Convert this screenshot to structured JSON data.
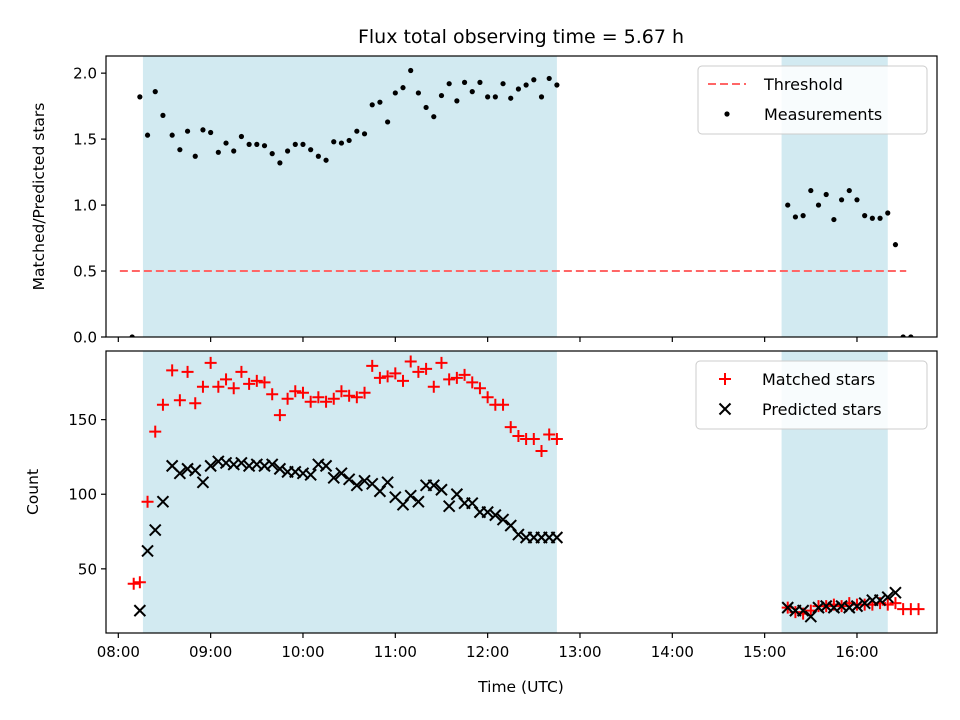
{
  "chart_data": {
    "title": "Flux total observing time = 5.67 h",
    "xlabel": "Time (UTC)",
    "x_ticks": [
      "08:00",
      "09:00",
      "10:00",
      "11:00",
      "12:00",
      "13:00",
      "14:00",
      "15:00",
      "16:00"
    ],
    "xlim": [
      "07:52",
      "16:52"
    ],
    "shaded_intervals": [
      [
        "08:16",
        "12:45"
      ],
      [
        "15:11",
        "16:20"
      ]
    ],
    "shade_color": "#add8e6",
    "panels": [
      {
        "type": "scatter",
        "ylabel": "Matched/Predicted stars",
        "ylim": [
          0,
          2.13
        ],
        "y_ticks": [
          "0.0",
          "0.5",
          "1.0",
          "1.5",
          "2.0"
        ],
        "legend_position": "top-right",
        "threshold": {
          "name": "Threshold",
          "value": 0.5,
          "x_range": [
            "08:01",
            "16:32"
          ],
          "color": "#ff6666",
          "style": "dashed"
        },
        "series": [
          {
            "name": "Measurements",
            "color": "#000000",
            "marker": "dot",
            "points": [
              [
                "08:09",
                0.0
              ],
              [
                "08:14",
                1.82
              ],
              [
                "08:19",
                1.53
              ],
              [
                "08:24",
                1.86
              ],
              [
                "08:29",
                1.68
              ],
              [
                "08:35",
                1.53
              ],
              [
                "08:40",
                1.42
              ],
              [
                "08:45",
                1.56
              ],
              [
                "08:50",
                1.37
              ],
              [
                "08:55",
                1.57
              ],
              [
                "09:00",
                1.55
              ],
              [
                "09:05",
                1.4
              ],
              [
                "09:10",
                1.47
              ],
              [
                "09:15",
                1.41
              ],
              [
                "09:20",
                1.52
              ],
              [
                "09:25",
                1.46
              ],
              [
                "09:30",
                1.46
              ],
              [
                "09:35",
                1.45
              ],
              [
                "09:40",
                1.39
              ],
              [
                "09:45",
                1.32
              ],
              [
                "09:50",
                1.41
              ],
              [
                "09:55",
                1.46
              ],
              [
                "10:00",
                1.46
              ],
              [
                "10:05",
                1.42
              ],
              [
                "10:10",
                1.37
              ],
              [
                "10:15",
                1.34
              ],
              [
                "10:20",
                1.48
              ],
              [
                "10:25",
                1.47
              ],
              [
                "10:30",
                1.49
              ],
              [
                "10:35",
                1.56
              ],
              [
                "10:40",
                1.54
              ],
              [
                "10:45",
                1.76
              ],
              [
                "10:50",
                1.78
              ],
              [
                "10:55",
                1.63
              ],
              [
                "11:00",
                1.85
              ],
              [
                "11:05",
                1.89
              ],
              [
                "11:10",
                2.02
              ],
              [
                "11:15",
                1.85
              ],
              [
                "11:20",
                1.74
              ],
              [
                "11:25",
                1.67
              ],
              [
                "11:30",
                1.83
              ],
              [
                "11:35",
                1.92
              ],
              [
                "11:40",
                1.79
              ],
              [
                "11:45",
                1.93
              ],
              [
                "11:50",
                1.86
              ],
              [
                "11:55",
                1.93
              ],
              [
                "12:00",
                1.82
              ],
              [
                "12:05",
                1.82
              ],
              [
                "12:10",
                1.92
              ],
              [
                "12:15",
                1.81
              ],
              [
                "12:20",
                1.88
              ],
              [
                "12:25",
                1.91
              ],
              [
                "12:30",
                1.95
              ],
              [
                "12:35",
                1.82
              ],
              [
                "12:40",
                1.96
              ],
              [
                "12:45",
                1.91
              ],
              [
                "15:15",
                1.0
              ],
              [
                "15:20",
                0.91
              ],
              [
                "15:25",
                0.92
              ],
              [
                "15:30",
                1.11
              ],
              [
                "15:35",
                1.0
              ],
              [
                "15:40",
                1.08
              ],
              [
                "15:45",
                0.89
              ],
              [
                "15:50",
                1.04
              ],
              [
                "15:55",
                1.11
              ],
              [
                "16:00",
                1.04
              ],
              [
                "16:05",
                0.92
              ],
              [
                "16:10",
                0.9
              ],
              [
                "16:15",
                0.9
              ],
              [
                "16:20",
                0.94
              ],
              [
                "16:25",
                0.7
              ],
              [
                "16:30",
                0.0
              ],
              [
                "16:35",
                0.0
              ]
            ]
          }
        ]
      },
      {
        "type": "scatter",
        "ylabel": "Count",
        "ylim": [
          7,
          196
        ],
        "y_ticks": [
          "50",
          "100",
          "150"
        ],
        "legend_position": "top-right",
        "series": [
          {
            "name": "Matched stars",
            "color": "#ff0000",
            "marker": "plus",
            "points": [
              [
                "08:10",
                40
              ],
              [
                "08:14",
                41
              ],
              [
                "08:19",
                95
              ],
              [
                "08:24",
                142
              ],
              [
                "08:29",
                160
              ],
              [
                "08:35",
                183
              ],
              [
                "08:40",
                163
              ],
              [
                "08:45",
                182
              ],
              [
                "08:50",
                161
              ],
              [
                "08:55",
                172
              ],
              [
                "09:00",
                188
              ],
              [
                "09:05",
                172
              ],
              [
                "09:10",
                177
              ],
              [
                "09:15",
                171
              ],
              [
                "09:20",
                182
              ],
              [
                "09:25",
                174
              ],
              [
                "09:30",
                176
              ],
              [
                "09:35",
                175
              ],
              [
                "09:40",
                167
              ],
              [
                "09:45",
                153
              ],
              [
                "09:50",
                164
              ],
              [
                "09:55",
                169
              ],
              [
                "10:00",
                168
              ],
              [
                "10:05",
                162
              ],
              [
                "10:10",
                165
              ],
              [
                "10:15",
                162
              ],
              [
                "10:20",
                164
              ],
              [
                "10:25",
                169
              ],
              [
                "10:30",
                166
              ],
              [
                "10:35",
                165
              ],
              [
                "10:40",
                168
              ],
              [
                "10:45",
                186
              ],
              [
                "10:50",
                178
              ],
              [
                "10:55",
                179
              ],
              [
                "11:00",
                181
              ],
              [
                "11:05",
                176
              ],
              [
                "11:10",
                189
              ],
              [
                "11:15",
                182
              ],
              [
                "11:20",
                184
              ],
              [
                "11:25",
                172
              ],
              [
                "11:30",
                188
              ],
              [
                "11:35",
                177
              ],
              [
                "11:40",
                178
              ],
              [
                "11:45",
                180
              ],
              [
                "11:50",
                175
              ],
              [
                "11:55",
                171
              ],
              [
                "12:00",
                165
              ],
              [
                "12:05",
                160
              ],
              [
                "12:10",
                160
              ],
              [
                "12:15",
                145
              ],
              [
                "12:20",
                139
              ],
              [
                "12:25",
                137
              ],
              [
                "12:30",
                137
              ],
              [
                "12:35",
                129
              ],
              [
                "12:40",
                140
              ],
              [
                "12:45",
                137
              ],
              [
                "15:15",
                24
              ],
              [
                "15:20",
                21
              ],
              [
                "15:25",
                20
              ],
              [
                "15:30",
                22
              ],
              [
                "15:35",
                25
              ],
              [
                "15:40",
                25
              ],
              [
                "15:45",
                26
              ],
              [
                "15:50",
                25
              ],
              [
                "15:55",
                27
              ],
              [
                "16:00",
                26
              ],
              [
                "16:05",
                26
              ],
              [
                "16:10",
                26
              ],
              [
                "16:15",
                27
              ],
              [
                "16:20",
                26
              ],
              [
                "16:25",
                27
              ],
              [
                "16:30",
                23
              ],
              [
                "16:35",
                23
              ],
              [
                "16:40",
                23
              ]
            ]
          },
          {
            "name": "Predicted stars",
            "color": "#000000",
            "marker": "x",
            "points": [
              [
                "08:14",
                22
              ],
              [
                "08:19",
                62
              ],
              [
                "08:24",
                76
              ],
              [
                "08:29",
                95
              ],
              [
                "08:35",
                119
              ],
              [
                "08:40",
                114
              ],
              [
                "08:45",
                117
              ],
              [
                "08:50",
                116
              ],
              [
                "08:55",
                108
              ],
              [
                "09:00",
                119
              ],
              [
                "09:05",
                122
              ],
              [
                "09:10",
                121
              ],
              [
                "09:15",
                120
              ],
              [
                "09:20",
                121
              ],
              [
                "09:25",
                119
              ],
              [
                "09:30",
                120
              ],
              [
                "09:35",
                119
              ],
              [
                "09:40",
                120
              ],
              [
                "09:45",
                117
              ],
              [
                "09:50",
                115
              ],
              [
                "09:55",
                115
              ],
              [
                "10:00",
                114
              ],
              [
                "10:05",
                113
              ],
              [
                "10:10",
                120
              ],
              [
                "10:15",
                119
              ],
              [
                "10:20",
                111
              ],
              [
                "10:25",
                114
              ],
              [
                "10:30",
                110
              ],
              [
                "10:35",
                106
              ],
              [
                "10:40",
                109
              ],
              [
                "10:45",
                107
              ],
              [
                "10:50",
                102
              ],
              [
                "10:55",
                108
              ],
              [
                "11:00",
                98
              ],
              [
                "11:05",
                93
              ],
              [
                "11:10",
                99
              ],
              [
                "11:15",
                95
              ],
              [
                "11:20",
                106
              ],
              [
                "11:25",
                106
              ],
              [
                "11:30",
                103
              ],
              [
                "11:35",
                92
              ],
              [
                "11:40",
                100
              ],
              [
                "11:45",
                94
              ],
              [
                "11:50",
                94
              ],
              [
                "11:55",
                88
              ],
              [
                "12:00",
                88
              ],
              [
                "12:05",
                86
              ],
              [
                "12:10",
                83
              ],
              [
                "12:15",
                79
              ],
              [
                "12:20",
                73
              ],
              [
                "12:25",
                71
              ],
              [
                "12:30",
                71
              ],
              [
                "12:35",
                71
              ],
              [
                "12:40",
                71
              ],
              [
                "12:45",
                71
              ],
              [
                "15:15",
                24
              ],
              [
                "15:20",
                22
              ],
              [
                "15:25",
                22
              ],
              [
                "15:30",
                18
              ],
              [
                "15:35",
                24
              ],
              [
                "15:40",
                25
              ],
              [
                "15:45",
                24
              ],
              [
                "15:50",
                25
              ],
              [
                "15:55",
                24
              ],
              [
                "16:00",
                25
              ],
              [
                "16:05",
                27
              ],
              [
                "16:10",
                29
              ],
              [
                "16:15",
                29
              ],
              [
                "16:20",
                31
              ],
              [
                "16:25",
                34
              ]
            ]
          }
        ]
      }
    ]
  }
}
